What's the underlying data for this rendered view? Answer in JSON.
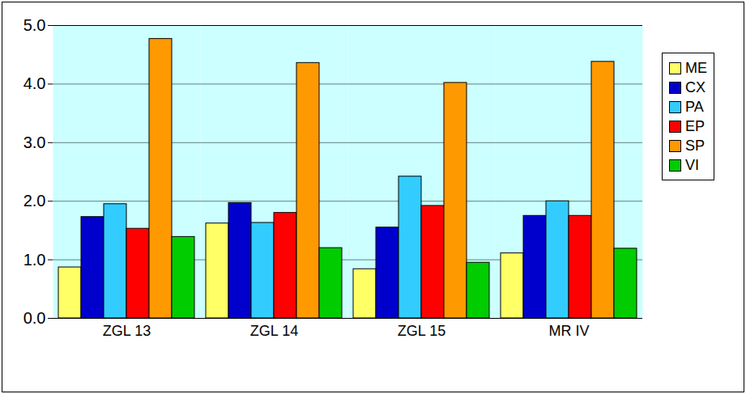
{
  "chart_data": {
    "type": "bar",
    "categories": [
      "ZGL 13",
      "ZGL 14",
      "ZGL 15",
      "MR IV"
    ],
    "series": [
      {
        "name": "ME",
        "color": "#ffff66",
        "values": [
          0.87,
          1.62,
          0.84,
          1.11
        ]
      },
      {
        "name": "CX",
        "color": "#0000cc",
        "values": [
          1.73,
          1.97,
          1.55,
          1.75
        ]
      },
      {
        "name": "PA",
        "color": "#33ccff",
        "values": [
          1.95,
          1.63,
          2.42,
          2.0
        ]
      },
      {
        "name": "EP",
        "color": "#ff0000",
        "values": [
          1.53,
          1.8,
          1.92,
          1.75
        ]
      },
      {
        "name": "SP",
        "color": "#ff9900",
        "values": [
          4.77,
          4.36,
          4.02,
          4.38
        ]
      },
      {
        "name": "VI",
        "color": "#00cc00",
        "values": [
          1.39,
          1.2,
          0.95,
          1.19
        ]
      }
    ],
    "ylim": [
      0,
      5
    ],
    "yticks": [
      0,
      1,
      2,
      3,
      4,
      5
    ],
    "grid": true,
    "legend": "right"
  }
}
